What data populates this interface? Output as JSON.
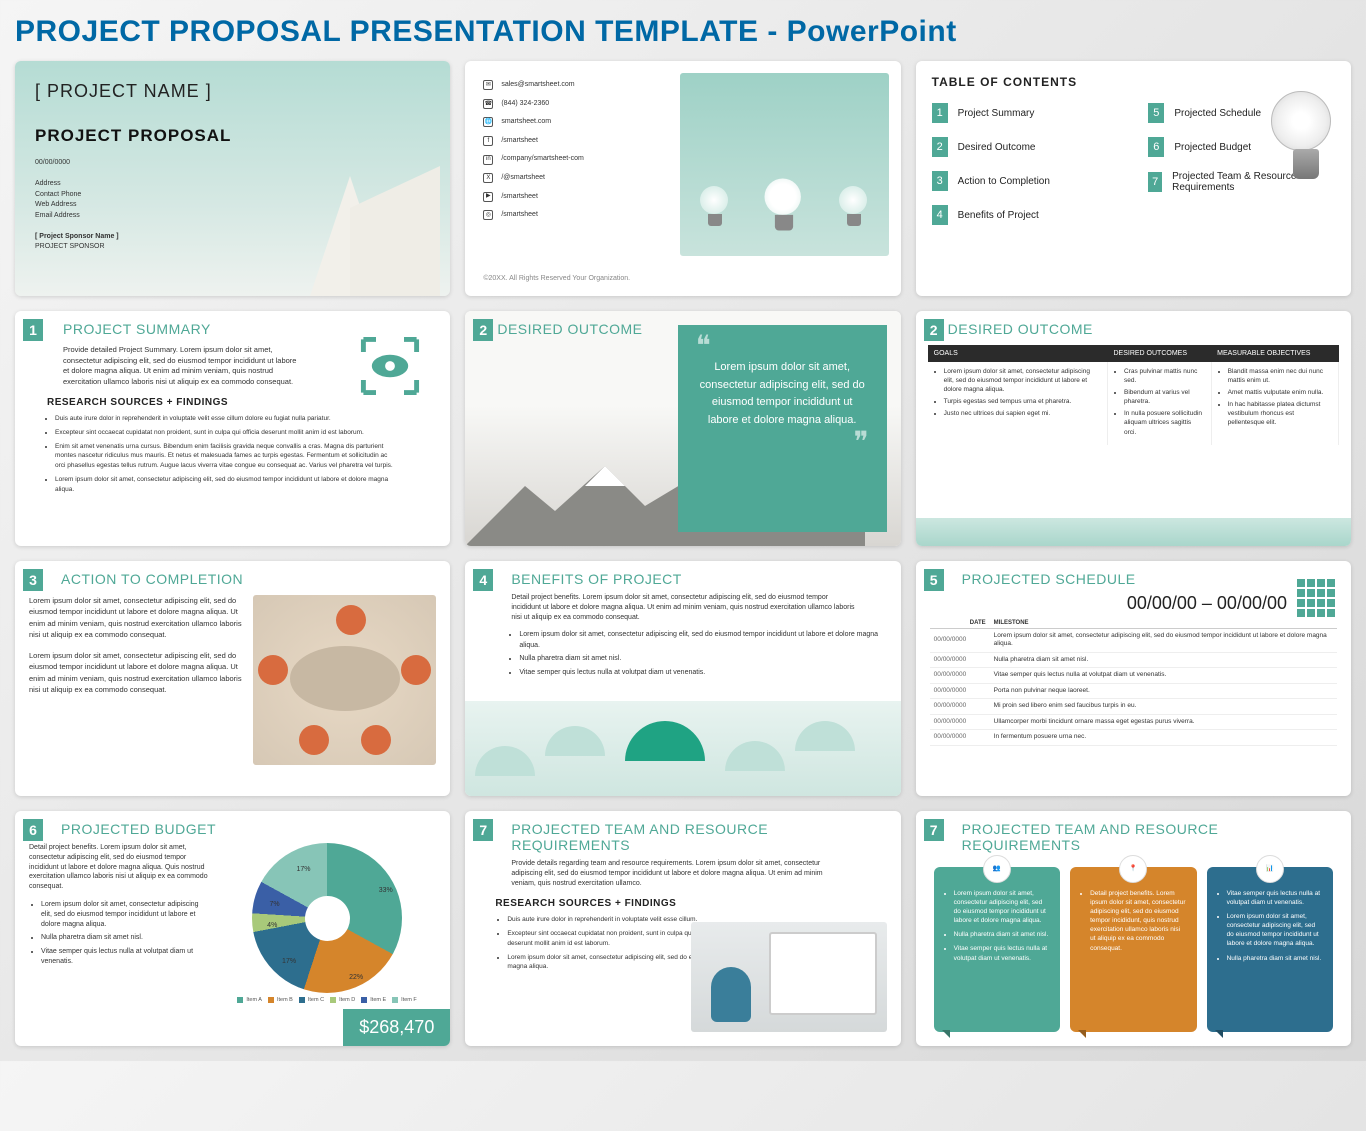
{
  "page_title": "PROJECT PROPOSAL PRESENTATION TEMPLATE - PowerPoint",
  "colors": {
    "accent": "#4fa896",
    "title": "#0068a5",
    "dark": "#2b2b2b"
  },
  "slide1": {
    "project_name": "[ PROJECT NAME ]",
    "subtitle": "PROJECT PROPOSAL",
    "date": "00/00/0000",
    "meta": [
      "Address",
      "Contact Phone",
      "Web Address",
      "Email Address"
    ],
    "sponsor_name": "[ Project Sponsor Name ]",
    "sponsor_label": "PROJECT SPONSOR"
  },
  "slide2": {
    "contacts": [
      {
        "icon": "✉",
        "text": "sales@smartsheet.com"
      },
      {
        "icon": "☎",
        "text": "(844) 324-2360"
      },
      {
        "icon": "🌐",
        "text": "smartsheet.com"
      },
      {
        "icon": "f",
        "text": "/smartsheet"
      },
      {
        "icon": "in",
        "text": "/company/smartsheet-com"
      },
      {
        "icon": "X",
        "text": "/@smartsheet"
      },
      {
        "icon": "▶",
        "text": "/smartsheet"
      },
      {
        "icon": "◎",
        "text": "/smartsheet"
      }
    ],
    "copyright": "©20XX. All Rights Reserved Your Organization."
  },
  "slide3": {
    "heading": "TABLE OF CONTENTS",
    "left": [
      {
        "n": "1",
        "t": "Project Summary"
      },
      {
        "n": "2",
        "t": "Desired Outcome"
      },
      {
        "n": "3",
        "t": "Action to Completion"
      },
      {
        "n": "4",
        "t": "Benefits of Project"
      }
    ],
    "right": [
      {
        "n": "5",
        "t": "Projected Schedule"
      },
      {
        "n": "6",
        "t": "Projected Budget"
      },
      {
        "n": "7",
        "t": "Projected Team & Resource Requirements"
      }
    ]
  },
  "slide4": {
    "num": "1",
    "title": "PROJECT SUMMARY",
    "body": "Provide detailed Project Summary. Lorem ipsum dolor sit amet, consectetur adipiscing elit, sed do eiusmod tempor incididunt ut labore et dolore magna aliqua. Ut enim ad minim veniam, quis nostrud exercitation ullamco laboris nisi ut aliquip ex ea commodo consequat.",
    "sub": "RESEARCH SOURCES + FINDINGS",
    "bullets": [
      "Duis aute irure dolor in reprehenderit in voluptate velit esse cillum dolore eu fugiat nulla pariatur.",
      "Excepteur sint occaecat cupidatat non proident, sunt in culpa qui officia deserunt mollit anim id est laborum.",
      "Enim sit amet venenatis urna cursus. Bibendum enim facilisis gravida neque convallis a cras. Magna dis parturient montes nascetur ridiculus mus mauris. Et netus et malesuada fames ac turpis egestas. Fermentum et sollicitudin ac orci phasellus egestas tellus rutrum. Augue lacus viverra vitae congue eu consequat ac. Varius vel pharetra vel turpis.",
      "Lorem ipsum dolor sit amet, consectetur adipiscing elit, sed do eiusmod tempor incididunt ut labore et dolore magna aliqua."
    ]
  },
  "slide5": {
    "num": "2",
    "title": "DESIRED OUTCOME",
    "quote": "Lorem ipsum dolor sit amet, consectetur adipiscing elit, sed do eiusmod tempor incididunt ut labore et dolore magna aliqua."
  },
  "slide6": {
    "num": "2",
    "title": "DESIRED OUTCOME",
    "headers": [
      "GOALS",
      "DESIRED OUTCOMES",
      "MEASURABLE OBJECTIVES"
    ],
    "col1": [
      "Lorem ipsum dolor sit amet, consectetur adipiscing elit, sed do eiusmod tempor incididunt ut labore et dolore magna aliqua.",
      "Turpis egestas sed tempus urna et pharetra.",
      "Justo nec ultrices dui sapien eget mi."
    ],
    "col2": [
      "Cras pulvinar mattis nunc sed.",
      "Bibendum at varius vel pharetra.",
      "In nulla posuere sollicitudin aliquam ultrices sagittis orci."
    ],
    "col3": [
      "Blandit massa enim nec dui nunc mattis enim ut.",
      "Amet mattis vulputate enim nulla.",
      "In hac habitasse platea dictumst vestibulum rhoncus est pellentesque elit."
    ]
  },
  "slide7": {
    "num": "3",
    "title": "ACTION TO COMPLETION",
    "p1": "Lorem ipsum dolor sit amet, consectetur adipiscing elit, sed do eiusmod tempor incididunt ut labore et dolore magna aliqua. Ut enim ad minim veniam, quis nostrud exercitation ullamco laboris nisi ut aliquip ex ea commodo consequat.",
    "p2": "Lorem ipsum dolor sit amet, consectetur adipiscing elit, sed do eiusmod tempor incididunt ut labore et dolore magna aliqua. Ut enim ad minim veniam, quis nostrud exercitation ullamco laboris nisi ut aliquip ex ea commodo consequat."
  },
  "slide8": {
    "num": "4",
    "title": "BENEFITS OF PROJECT",
    "desc": "Detail project benefits. Lorem ipsum dolor sit amet, consectetur adipiscing elit, sed do eiusmod tempor incididunt ut labore et dolore magna aliqua. Ut enim ad minim veniam, quis nostrud exercitation ullamco laboris nisi ut aliquip ex ea commodo consequat.",
    "bullets": [
      "Lorem ipsum dolor sit amet, consectetur adipiscing elit, sed do eiusmod tempor incididunt ut labore et dolore magna aliqua.",
      "Nulla pharetra diam sit amet nisl.",
      "Vitae semper quis lectus nulla at volutpat diam ut venenatis."
    ]
  },
  "slide9": {
    "num": "5",
    "title": "PROJECTED SCHEDULE",
    "range": "00/00/00 – 00/00/00",
    "th": [
      "DATE",
      "MILESTONE"
    ],
    "rows": [
      [
        "00/00/0000",
        "Lorem ipsum dolor sit amet, consectetur adipiscing elit, sed do eiusmod tempor incididunt ut labore et dolore magna aliqua."
      ],
      [
        "00/00/0000",
        "Nulla pharetra diam sit amet nisl."
      ],
      [
        "00/00/0000",
        "Vitae semper quis lectus nulla at volutpat diam ut venenatis."
      ],
      [
        "00/00/0000",
        "Porta non pulvinar neque laoreet."
      ],
      [
        "00/00/0000",
        "Mi proin sed libero enim sed faucibus turpis in eu."
      ],
      [
        "00/00/0000",
        "Ullamcorper morbi tincidunt ornare massa eget egestas purus viverra."
      ],
      [
        "00/00/0000",
        "In fermentum posuere urna nec."
      ]
    ]
  },
  "slide10": {
    "num": "6",
    "title": "PROJECTED BUDGET",
    "desc": "Detail project benefits. Lorem ipsum dolor sit amet, consectetur adipiscing elit, sed do eiusmod tempor incididunt ut labore et dolore magna aliqua. Quis nostrud exercitation ullamco laboris nisi ut aliquip ex ea commodo consequat.",
    "bullets": [
      "Lorem ipsum dolor sit amet, consectetur adipiscing elit, sed do eiusmod tempor incididunt ut labore et dolore magna aliqua.",
      "Nulla pharetra diam sit amet nisl.",
      "Vitae semper quis lectus nulla at volutpat diam ut venenatis."
    ],
    "total": "$268,470",
    "chart": {
      "type": "donut",
      "items": [
        {
          "label": "Item A",
          "value": 33,
          "color": "#4fa896"
        },
        {
          "label": "Item B",
          "value": 22,
          "color": "#d5852b"
        },
        {
          "label": "Item C",
          "value": 17,
          "color": "#2d6e8e"
        },
        {
          "label": "Item D",
          "value": 4,
          "color": "#a8c97a"
        },
        {
          "label": "Item E",
          "value": 7,
          "color": "#3a5fa6"
        },
        {
          "label": "Item F",
          "value": 17,
          "color": "#87c5b7"
        }
      ],
      "hole_pct": 30,
      "label_suffix": "%"
    }
  },
  "slide11": {
    "num": "7",
    "title": "PROJECTED TEAM AND RESOURCE REQUIREMENTS",
    "desc": "Provide details regarding team and resource requirements. Lorem ipsum dolor sit amet, consectetur adipiscing elit, sed do eiusmod tempor incididunt ut labore et dolore magna aliqua. Ut enim ad minim veniam, quis nostrud exercitation ullamco.",
    "sub": "RESEARCH SOURCES + FINDINGS",
    "bullets": [
      "Duis aute irure dolor in reprehenderit in voluptate velit esse cillum.",
      "Excepteur sint occaecat cupidatat non proident, sunt in culpa qui officia deserunt mollit anim id est laborum.",
      "Lorem ipsum dolor sit amet, consectetur adipiscing elit, sed do eiusmod magna aliqua."
    ]
  },
  "slide12": {
    "num": "7",
    "title": "PROJECTED TEAM AND RESOURCE REQUIREMENTS",
    "cards": [
      {
        "color": "#4fa896",
        "icon": "👥",
        "bullets": [
          "Lorem ipsum dolor sit amet, consectetur adipiscing elit, sed do eiusmod tempor incididunt ut labore et dolore magna aliqua.",
          "Nulla pharetra diam sit amet nisl.",
          "Vitae semper quis lectus nulla at volutpat diam ut venenatis."
        ]
      },
      {
        "color": "#d5852b",
        "icon": "📍",
        "bullets": [
          "Detail project benefits. Lorem ipsum dolor sit amet, consectetur adipiscing elit, sed do eiusmod tempor incididunt, quis nostrud exercitation ullamco laboris nisi ut aliquip ex ea commodo consequat."
        ]
      },
      {
        "color": "#2d6e8e",
        "icon": "📊",
        "bullets": [
          "Vitae semper quis lectus nulla at volutpat diam ut venenatis.",
          "Lorem ipsum dolor sit amet, consectetur adipiscing elit, sed do eiusmod tempor incididunt ut labore et dolore magna aliqua.",
          "Nulla pharetra diam sit amet nisl."
        ]
      }
    ]
  }
}
